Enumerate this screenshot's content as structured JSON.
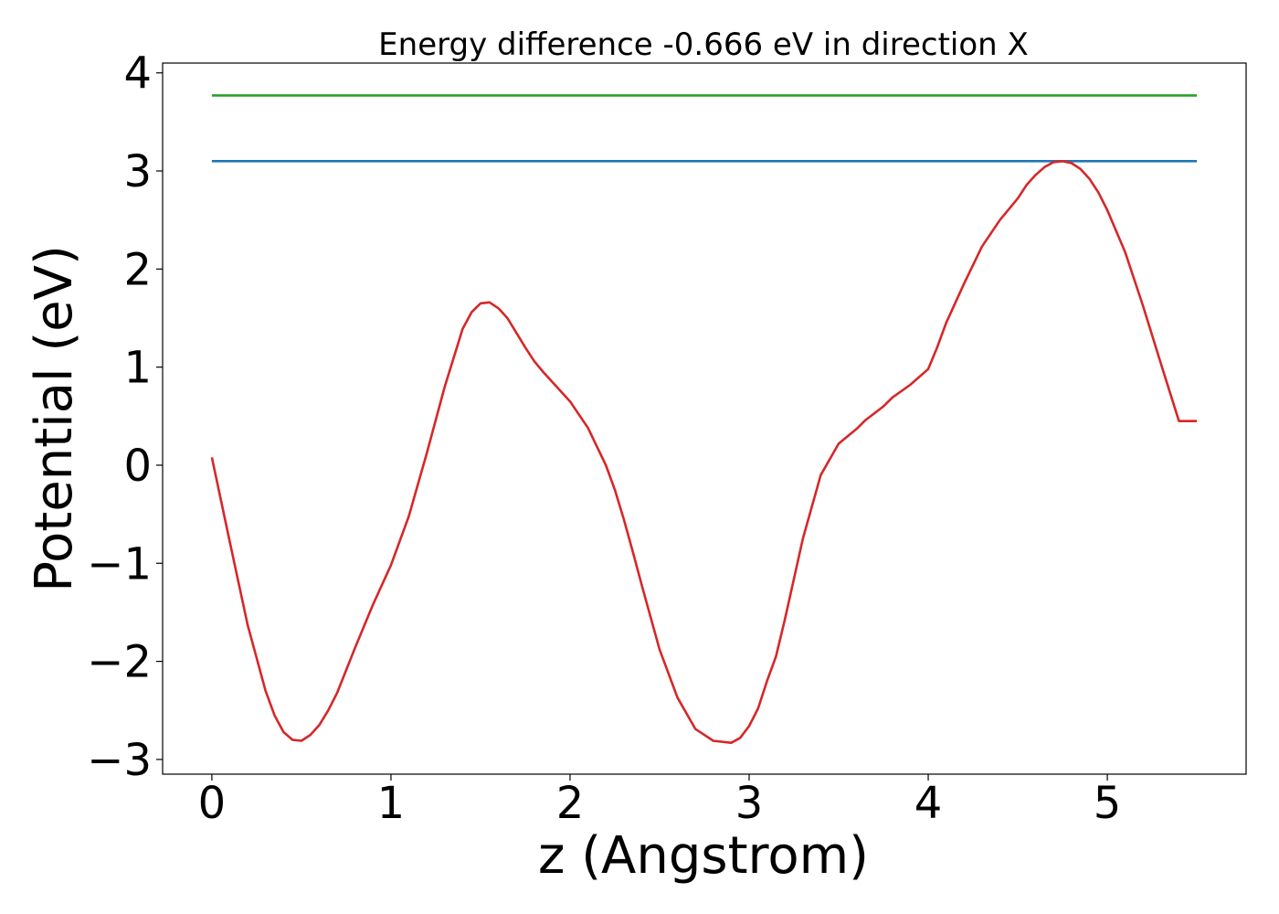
{
  "chart_data": {
    "type": "line",
    "title": "Energy difference -0.666 eV in direction X",
    "xlabel": "z (Angstrom)",
    "ylabel": "Potential (eV)",
    "xlim": [
      -0.275,
      5.775
    ],
    "ylim": [
      -3.15,
      4.1
    ],
    "xticks": [
      {
        "value": 0,
        "label": "0"
      },
      {
        "value": 1,
        "label": "1"
      },
      {
        "value": 2,
        "label": "2"
      },
      {
        "value": 3,
        "label": "3"
      },
      {
        "value": 4,
        "label": "4"
      },
      {
        "value": 5,
        "label": "5"
      }
    ],
    "yticks": [
      {
        "value": -3,
        "label": "−3"
      },
      {
        "value": -2,
        "label": "−2"
      },
      {
        "value": -1,
        "label": "−1"
      },
      {
        "value": 0,
        "label": "0"
      },
      {
        "value": 1,
        "label": "1"
      },
      {
        "value": 2,
        "label": "2"
      },
      {
        "value": 3,
        "label": "3"
      },
      {
        "value": 4,
        "label": "4"
      }
    ],
    "grid": false,
    "series": [
      {
        "color": "#2ca02c",
        "x": [
          0,
          5.5
        ],
        "y": [
          3.77,
          3.77
        ]
      },
      {
        "color": "#1f77b4",
        "x": [
          0,
          5.5
        ],
        "y": [
          3.1,
          3.1
        ]
      },
      {
        "color": "#d62728",
        "x": [
          0,
          0.1,
          0.2,
          0.3,
          0.35,
          0.4,
          0.45,
          0.5,
          0.55,
          0.6,
          0.65,
          0.7,
          0.8,
          0.9,
          1.0,
          1.1,
          1.2,
          1.3,
          1.4,
          1.45,
          1.5,
          1.55,
          1.6,
          1.65,
          1.7,
          1.75,
          1.8,
          1.85,
          1.9,
          2.0,
          2.1,
          2.2,
          2.25,
          2.3,
          2.35,
          2.4,
          2.5,
          2.6,
          2.7,
          2.8,
          2.9,
          2.95,
          3.0,
          3.05,
          3.1,
          3.15,
          3.2,
          3.3,
          3.4,
          3.5,
          3.6,
          3.65,
          3.7,
          3.75,
          3.8,
          3.9,
          4.0,
          4.05,
          4.1,
          4.2,
          4.3,
          4.4,
          4.5,
          4.55,
          4.6,
          4.65,
          4.7,
          4.75,
          4.8,
          4.85,
          4.9,
          4.95,
          5.0,
          5.1,
          5.2,
          5.3,
          5.4,
          5.5
        ],
        "y": [
          0.08,
          -0.78,
          -1.63,
          -2.3,
          -2.55,
          -2.72,
          -2.8,
          -2.81,
          -2.75,
          -2.65,
          -2.5,
          -2.32,
          -1.86,
          -1.42,
          -1.02,
          -0.52,
          0.12,
          0.8,
          1.39,
          1.56,
          1.65,
          1.66,
          1.6,
          1.5,
          1.35,
          1.2,
          1.06,
          0.95,
          0.85,
          0.65,
          0.38,
          0.0,
          -0.25,
          -0.55,
          -0.88,
          -1.22,
          -1.88,
          -2.37,
          -2.69,
          -2.81,
          -2.83,
          -2.78,
          -2.66,
          -2.48,
          -2.2,
          -1.95,
          -1.57,
          -0.75,
          -0.1,
          0.22,
          0.37,
          0.46,
          0.53,
          0.6,
          0.69,
          0.82,
          0.98,
          1.2,
          1.45,
          1.85,
          2.23,
          2.5,
          2.72,
          2.86,
          2.96,
          3.04,
          3.09,
          3.1,
          3.08,
          3.02,
          2.92,
          2.78,
          2.6,
          2.17,
          1.62,
          1.03,
          0.45,
          0.45
        ]
      }
    ]
  }
}
